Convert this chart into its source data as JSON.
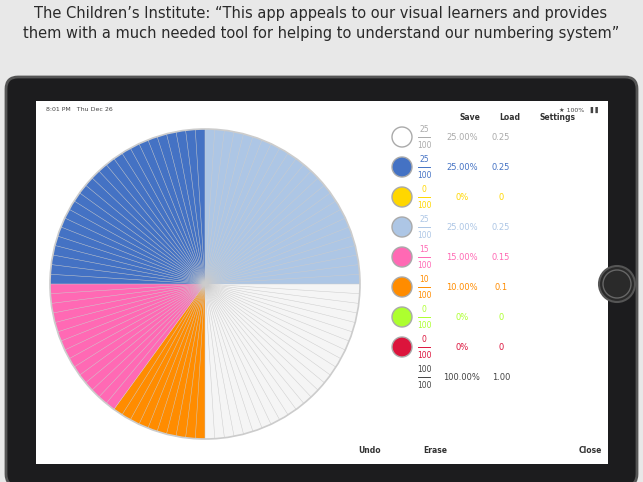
{
  "title_text": "The Children’s Institute: “This app appeals to our visual learners and provides\nthem with a much needed tool for helping to understand our numbering system”",
  "bg_color": "#e8e8e8",
  "tablet_bg": "#1c1c1e",
  "screen_bg": "#ffffff",
  "pie_ordered": [
    {
      "color": "#adc6e5",
      "value": 25
    },
    {
      "color": "#f5f5f5",
      "value": 25
    },
    {
      "color": "#ff8c00",
      "value": 10
    },
    {
      "color": "#ff69b4",
      "value": 15
    },
    {
      "color": "#4472c4",
      "value": 25
    }
  ],
  "legend_colors": [
    "#ffffff",
    "#4472c4",
    "#ffd700",
    "#adc6e5",
    "#ff69b4",
    "#ff8c00",
    "#adff2f",
    "#dc143c"
  ],
  "legend_fracs_num": [
    "25",
    "25",
    "0",
    "25",
    "15",
    "10",
    "0",
    "0"
  ],
  "legend_fracs_den": [
    "100",
    "100",
    "100",
    "100",
    "100",
    "100",
    "100",
    "100"
  ],
  "legend_pcts": [
    "25.00%",
    "25.00%",
    "0%",
    "25.00%",
    "15.00%",
    "10.00%",
    "0%",
    "0%"
  ],
  "legend_decs": [
    "0.25",
    "0.25",
    "0",
    "0.25",
    "0.15",
    "0.1",
    "0",
    "0"
  ],
  "legend_text_colors": [
    "#aaaaaa",
    "#4472c4",
    "#ffd700",
    "#adc6e5",
    "#ff69b4",
    "#ff8c00",
    "#adff2f",
    "#dc143c"
  ],
  "total_pct": "100.00%",
  "total_dec": "1.00"
}
